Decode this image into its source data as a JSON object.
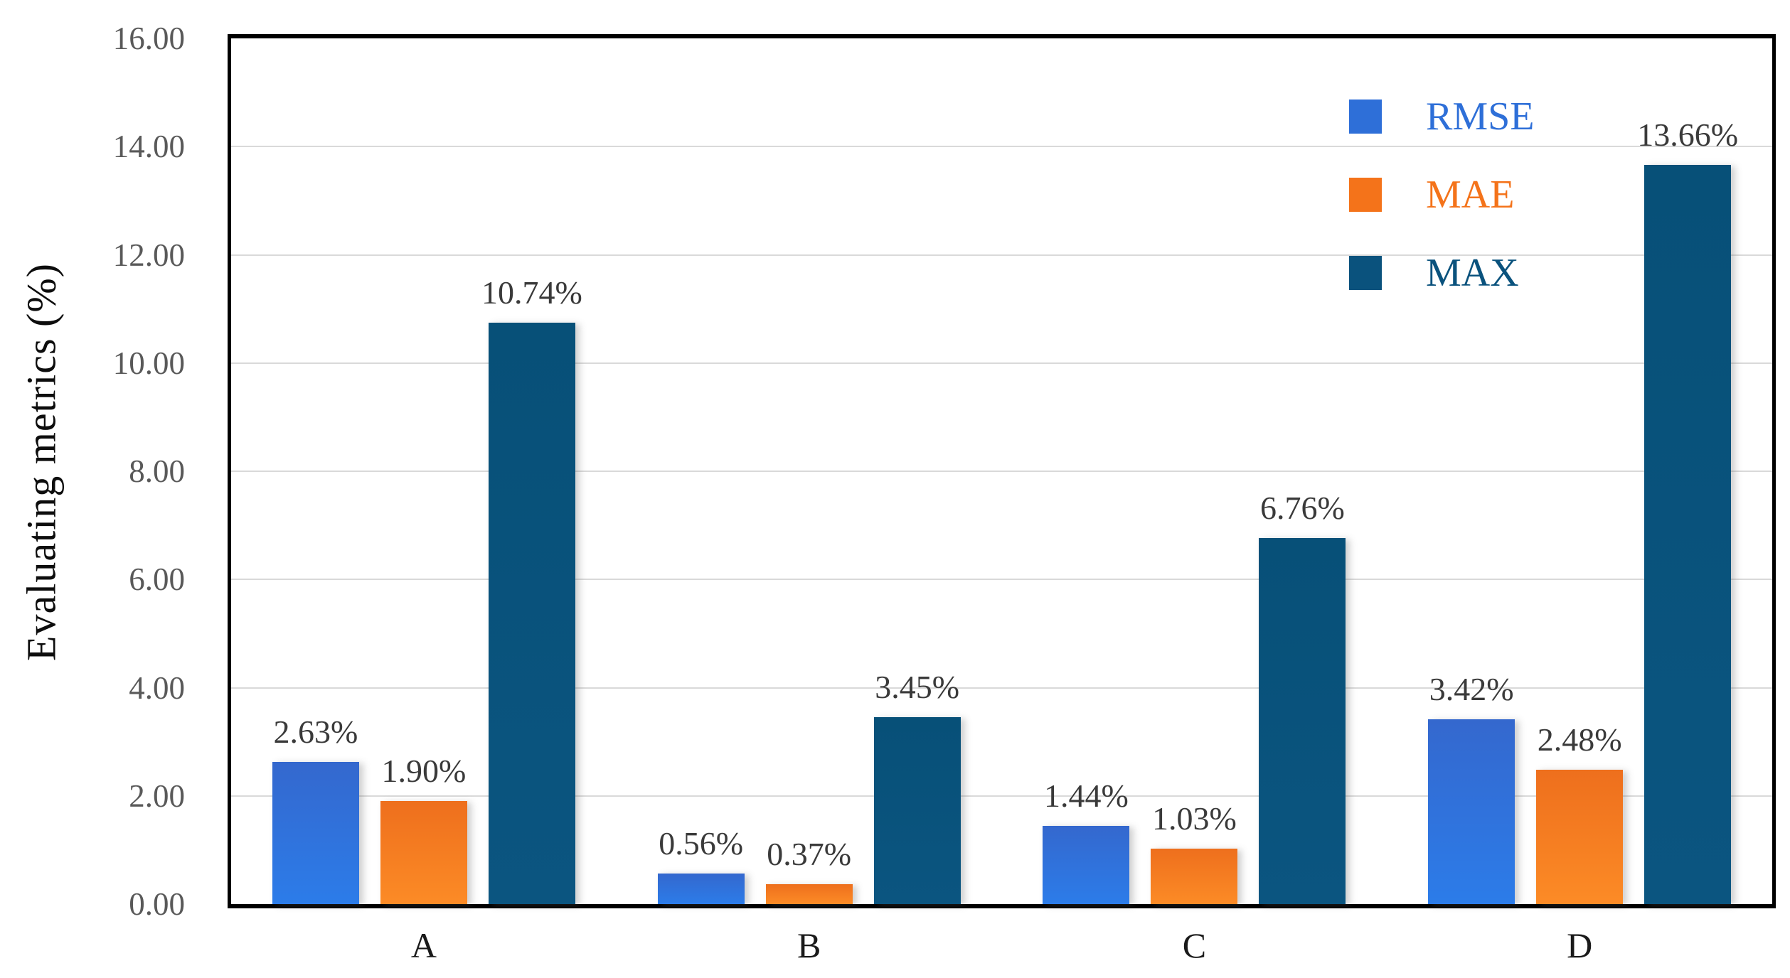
{
  "chart_data": {
    "type": "bar",
    "title": "",
    "ylabel": "Evaluating metrics (%)",
    "xlabel": "",
    "categories": [
      "A",
      "B",
      "C",
      "D"
    ],
    "series": [
      {
        "name": "RMSE",
        "color": "#2E6FD8",
        "gradient_top": "#3468CE",
        "gradient_bottom": "#2C7CE9",
        "values": [
          2.63,
          0.56,
          1.44,
          3.42
        ],
        "labels": [
          "2.63%",
          "0.56%",
          "1.44%",
          "3.42%"
        ]
      },
      {
        "name": "MAE",
        "color": "#F4731A",
        "gradient_top": "#EE6F1D",
        "gradient_bottom": "#FC8B26",
        "values": [
          1.9,
          0.37,
          1.03,
          2.48
        ],
        "labels": [
          "1.90%",
          "0.37%",
          "1.03%",
          "2.48%"
        ]
      },
      {
        "name": "MAX",
        "color": "#0A527D",
        "gradient_top": "#075078",
        "gradient_bottom": "#0B5580",
        "values": [
          10.74,
          3.45,
          6.76,
          13.66
        ],
        "labels": [
          "10.74%",
          "3.45%",
          "6.76%",
          "13.66%"
        ]
      }
    ],
    "ylim": [
      0,
      16
    ],
    "ytick_step": 2,
    "yticks": [
      "0.00",
      "2.00",
      "4.00",
      "6.00",
      "8.00",
      "10.00",
      "12.00",
      "14.00",
      "16.00"
    ],
    "grid": true,
    "legend_position": "top-right",
    "colors": {
      "gridline": "#D9D9D9",
      "axis_border": "#000000",
      "tick_text": "#595959",
      "value_label_text": "#3A3A3A",
      "category_text": "#1A1A1A",
      "background": "#FFFFFF"
    }
  }
}
